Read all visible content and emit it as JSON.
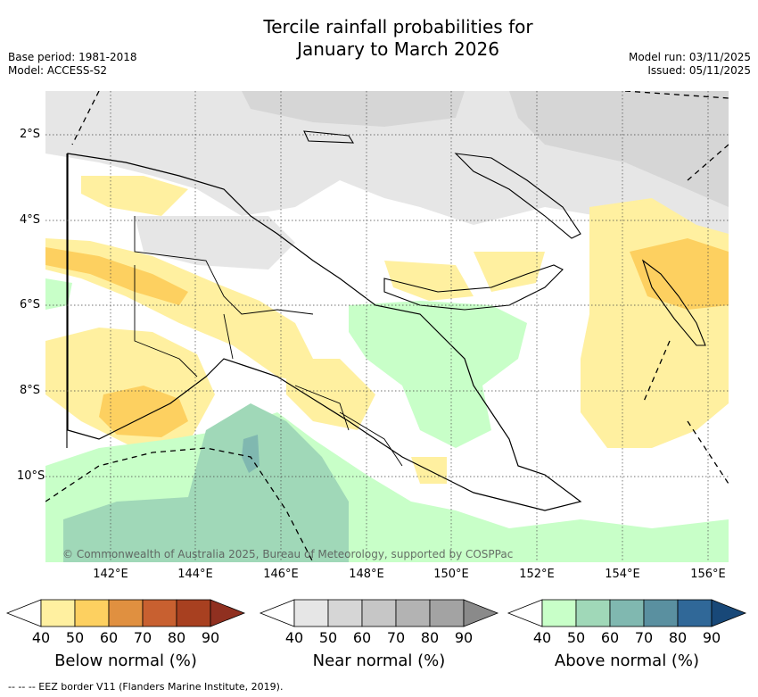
{
  "title_line1": "Tercile rainfall probabilities for",
  "title_line2": "January to March 2026",
  "base_period": "Base period: 1981-2018",
  "model": "Model: ACCESS-S2",
  "model_run": "Model run: 03/11/2025",
  "issued": "Issued: 05/11/2025",
  "copyright": "© Commonwealth of Australia 2025, Bureau of Meteorology, supported by COSPPac",
  "lat_labels": [
    "2°S",
    "4°S",
    "6°S",
    "8°S",
    "10°S"
  ],
  "lon_labels": [
    "142°E",
    "144°E",
    "146°E",
    "148°E",
    "150°E",
    "152°E",
    "154°E",
    "156°E"
  ],
  "legends": [
    {
      "title": "Below normal (%)",
      "ticks": [
        "40",
        "50",
        "60",
        "70",
        "80",
        "90"
      ],
      "colors": [
        "#ffffff",
        "#fff0a0",
        "#fdd060",
        "#e09040",
        "#c86030",
        "#a84020",
        "#903020"
      ]
    },
    {
      "title": "Near normal (%)",
      "ticks": [
        "40",
        "50",
        "60",
        "70",
        "80",
        "90"
      ],
      "colors": [
        "#ffffff",
        "#e6e6e6",
        "#d6d6d6",
        "#c6c6c6",
        "#b3b3b3",
        "#a3a3a3",
        "#8a8a8a"
      ]
    },
    {
      "title": "Above normal (%)",
      "ticks": [
        "40",
        "50",
        "60",
        "70",
        "80",
        "90"
      ],
      "colors": [
        "#ffffff",
        "#c8ffc8",
        "#a0d8b8",
        "#80b8b0",
        "#5a90a0",
        "#306898",
        "#184878"
      ]
    }
  ],
  "footer": "--  --  -- EEZ border V11 (Flanders Marine Institute, 2019)."
}
